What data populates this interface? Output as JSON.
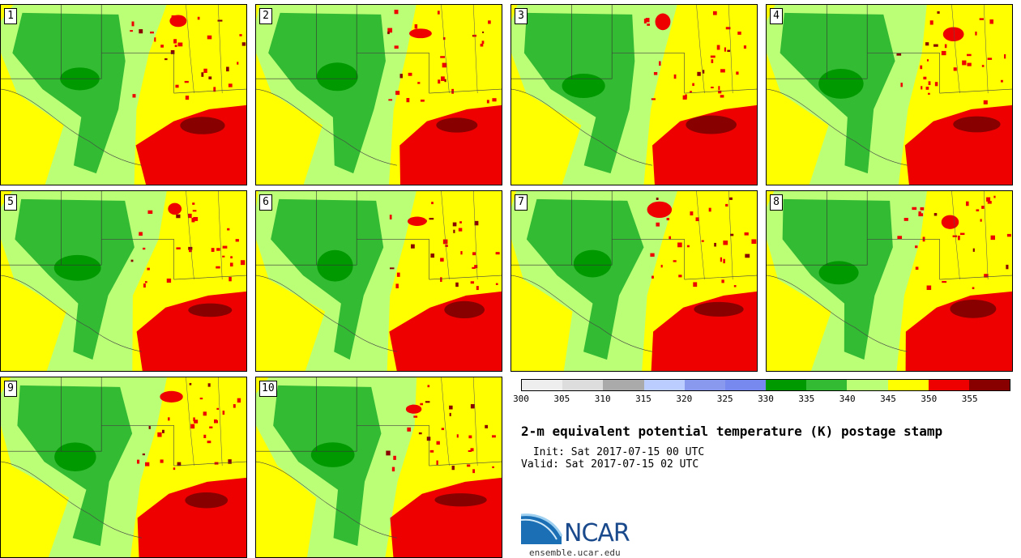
{
  "stamps": [
    {
      "label": "1"
    },
    {
      "label": "2"
    },
    {
      "label": "3"
    },
    {
      "label": "4"
    },
    {
      "label": "5"
    },
    {
      "label": "6"
    },
    {
      "label": "7"
    },
    {
      "label": "8"
    },
    {
      "label": "9"
    },
    {
      "label": "10"
    }
  ],
  "colorbar": {
    "colors": [
      "#eeeeee",
      "#dddddd",
      "#aaaaaa",
      "#bbccff",
      "#8899ee",
      "#7788ee",
      "#009900",
      "#33bb33",
      "#bbff77",
      "#ffff00",
      "#ee0000",
      "#880000"
    ],
    "ticks": [
      "300",
      "305",
      "310",
      "315",
      "320",
      "325",
      "330",
      "335",
      "340",
      "345",
      "350",
      "355"
    ]
  },
  "title": "2-m equivalent potential temperature (K) postage stamp",
  "init": " Init: Sat 2017-07-15 00 UTC",
  "valid": "Valid: Sat 2017-07-15 02 UTC",
  "logo": {
    "text": "NCAR"
  },
  "website": "ensemble.ucar.edu"
}
